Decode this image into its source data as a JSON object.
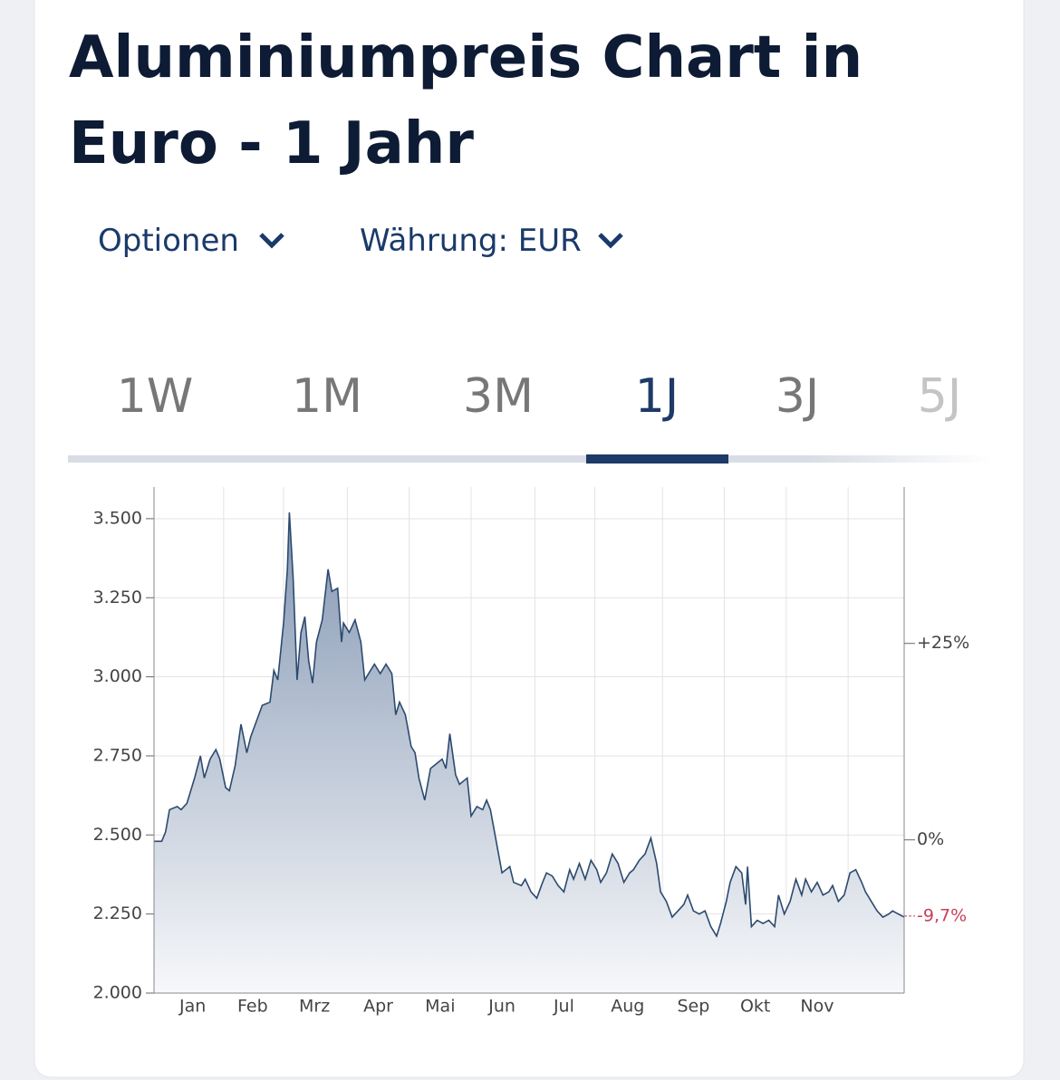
{
  "header": {
    "title_lines": [
      "Aluminiumpreis Chart in",
      "Euro - 1 Jahr"
    ],
    "options_label": "Optionen",
    "currency_label": "Währung: EUR"
  },
  "tabs": {
    "items": [
      "1W",
      "1M",
      "3M",
      "1J",
      "3J",
      "5J"
    ],
    "active": 3
  },
  "chart_data": {
    "type": "area",
    "color": "#2c4a6e",
    "grid": true,
    "x": [
      0,
      4,
      6,
      8,
      12,
      14,
      17,
      21,
      24,
      26,
      29,
      32,
      34,
      37,
      39,
      42,
      45,
      48,
      50,
      53,
      56,
      60,
      62,
      64,
      67,
      69,
      70,
      72,
      74,
      76,
      78,
      80,
      82,
      84,
      87,
      90,
      92,
      95,
      97,
      98,
      101,
      104,
      107,
      109,
      112,
      114,
      117,
      120,
      123,
      125,
      127,
      130,
      133,
      135,
      137,
      140,
      143,
      145,
      149,
      151,
      153,
      156,
      158,
      162,
      164,
      167,
      170,
      172,
      174,
      177,
      180,
      184,
      186,
      190,
      192,
      195,
      198,
      201,
      203,
      206,
      209,
      212,
      215,
      217,
      220,
      223,
      226,
      229,
      231,
      234,
      237,
      240,
      243,
      246,
      248,
      251,
      254,
      257,
      260,
      262,
      265,
      268,
      271,
      274,
      276,
      279,
      282,
      285,
      288,
      291,
      293,
      296,
      298,
      301,
      304,
      306,
      307,
      309,
      312,
      315,
      318,
      321,
      323,
      326,
      329,
      332,
      335,
      337,
      340,
      343,
      346,
      349,
      351,
      354,
      357,
      360,
      363,
      366,
      368,
      371,
      374,
      377,
      380,
      382,
      385,
      388
    ],
    "values": [
      2480,
      2480,
      2510,
      2580,
      2590,
      2580,
      2600,
      2680,
      2750,
      2680,
      2740,
      2770,
      2740,
      2650,
      2640,
      2720,
      2850,
      2760,
      2810,
      2860,
      2910,
      2920,
      3020,
      2990,
      3170,
      3340,
      3520,
      3310,
      2990,
      3140,
      3190,
      3050,
      2980,
      3110,
      3180,
      3340,
      3270,
      3280,
      3110,
      3170,
      3140,
      3180,
      3110,
      2990,
      3020,
      3040,
      3010,
      3040,
      3010,
      2880,
      2920,
      2880,
      2780,
      2760,
      2680,
      2610,
      2710,
      2720,
      2740,
      2710,
      2820,
      2690,
      2660,
      2680,
      2560,
      2590,
      2580,
      2610,
      2580,
      2480,
      2380,
      2400,
      2350,
      2340,
      2360,
      2320,
      2300,
      2350,
      2380,
      2370,
      2340,
      2320,
      2390,
      2360,
      2410,
      2360,
      2420,
      2390,
      2350,
      2380,
      2440,
      2410,
      2350,
      2380,
      2390,
      2420,
      2440,
      2490,
      2410,
      2320,
      2290,
      2240,
      2260,
      2280,
      2310,
      2260,
      2250,
      2260,
      2210,
      2180,
      2220,
      2290,
      2350,
      2400,
      2380,
      2280,
      2400,
      2210,
      2230,
      2220,
      2230,
      2210,
      2310,
      2250,
      2290,
      2360,
      2310,
      2360,
      2320,
      2350,
      2310,
      2320,
      2340,
      2290,
      2310,
      2380,
      2390,
      2350,
      2320,
      2290,
      2260,
      2240,
      2250,
      2260,
      2250,
      2240
    ],
    "xlim": [
      0,
      388
    ],
    "xticks": [
      {
        "value": 20,
        "label": "Jan"
      },
      {
        "value": 51,
        "label": "Feb"
      },
      {
        "value": 83,
        "label": "Mrz"
      },
      {
        "value": 116,
        "label": "Apr"
      },
      {
        "value": 148,
        "label": "Mai"
      },
      {
        "value": 180,
        "label": "Jun"
      },
      {
        "value": 212,
        "label": "Jul"
      },
      {
        "value": 245,
        "label": "Aug"
      },
      {
        "value": 279,
        "label": "Sep"
      },
      {
        "value": 311,
        "label": "Okt"
      },
      {
        "value": 343,
        "label": "Nov"
      }
    ],
    "xgrid": [
      36,
      67,
      100,
      132,
      164,
      197,
      228,
      263,
      295,
      327,
      359
    ],
    "ylim": [
      2000,
      3600
    ],
    "yticks": [
      {
        "value": 2000,
        "label": "2.000"
      },
      {
        "value": 2250,
        "label": "2.250"
      },
      {
        "value": 2500,
        "label": "2.500"
      },
      {
        "value": 2750,
        "label": "2.750"
      },
      {
        "value": 3000,
        "label": "3.000"
      },
      {
        "value": 3250,
        "label": "3.250"
      },
      {
        "value": 3500,
        "label": "3.500"
      }
    ],
    "y2lim": [
      -19.5,
      44.9
    ],
    "y2ticks": [
      {
        "value": 25,
        "label": "+25%"
      },
      {
        "value": 0,
        "label": "0%"
      }
    ],
    "annotation": {
      "value": -9.7,
      "label": "-9,7%",
      "color": "#c8405a"
    }
  }
}
